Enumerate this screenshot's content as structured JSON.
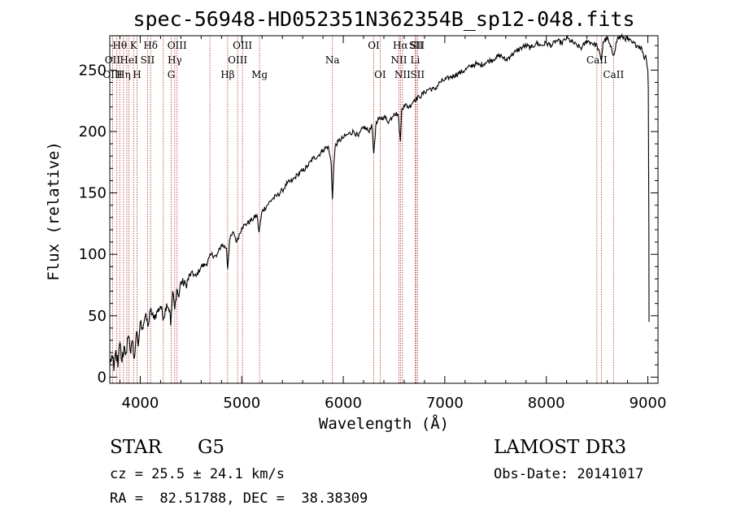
{
  "chart_data": {
    "type": "line",
    "title": "spec-56948-HD052351N362354B_sp12-048.fits",
    "xlabel": "Wavelength (Å)",
    "ylabel": "Flux (relative)",
    "xlim": [
      3700,
      9100
    ],
    "ylim": [
      -5,
      278
    ],
    "xticks": [
      4000,
      5000,
      6000,
      7000,
      8000,
      9000
    ],
    "yticks": [
      0,
      50,
      100,
      150,
      200,
      250
    ],
    "series": [
      {
        "name": "flux",
        "points": [
          [
            3700,
            10
          ],
          [
            3720,
            18
          ],
          [
            3740,
            5
          ],
          [
            3760,
            22
          ],
          [
            3780,
            8
          ],
          [
            3800,
            28
          ],
          [
            3820,
            12
          ],
          [
            3840,
            25
          ],
          [
            3860,
            20
          ],
          [
            3880,
            32
          ],
          [
            3900,
            22
          ],
          [
            3920,
            30
          ],
          [
            3940,
            15
          ],
          [
            3960,
            35
          ],
          [
            3980,
            25
          ],
          [
            4000,
            45
          ],
          [
            4020,
            40
          ],
          [
            4050,
            50
          ],
          [
            4080,
            42
          ],
          [
            4100,
            55
          ],
          [
            4130,
            48
          ],
          [
            4160,
            52
          ],
          [
            4200,
            58
          ],
          [
            4230,
            48
          ],
          [
            4260,
            60
          ],
          [
            4290,
            55
          ],
          [
            4300,
            42
          ],
          [
            4320,
            70
          ],
          [
            4340,
            55
          ],
          [
            4360,
            72
          ],
          [
            4380,
            65
          ],
          [
            4400,
            78
          ],
          [
            4450,
            75
          ],
          [
            4500,
            85
          ],
          [
            4550,
            82
          ],
          [
            4600,
            90
          ],
          [
            4650,
            92
          ],
          [
            4700,
            100
          ],
          [
            4750,
            98
          ],
          [
            4800,
            108
          ],
          [
            4850,
            105
          ],
          [
            4861,
            88
          ],
          [
            4880,
            112
          ],
          [
            4920,
            118
          ],
          [
            4950,
            110
          ],
          [
            5000,
            122
          ],
          [
            5050,
            125
          ],
          [
            5100,
            128
          ],
          [
            5150,
            132
          ],
          [
            5170,
            118
          ],
          [
            5200,
            135
          ],
          [
            5250,
            140
          ],
          [
            5300,
            145
          ],
          [
            5350,
            148
          ],
          [
            5400,
            152
          ],
          [
            5450,
            158
          ],
          [
            5500,
            160
          ],
          [
            5550,
            165
          ],
          [
            5600,
            168
          ],
          [
            5650,
            172
          ],
          [
            5700,
            178
          ],
          [
            5750,
            180
          ],
          [
            5800,
            185
          ],
          [
            5850,
            188
          ],
          [
            5880,
            175
          ],
          [
            5893,
            145
          ],
          [
            5905,
            170
          ],
          [
            5920,
            188
          ],
          [
            5950,
            192
          ],
          [
            6000,
            195
          ],
          [
            6050,
            198
          ],
          [
            6100,
            200
          ],
          [
            6150,
            196
          ],
          [
            6200,
            204
          ],
          [
            6250,
            200
          ],
          [
            6280,
            206
          ],
          [
            6300,
            182
          ],
          [
            6320,
            205
          ],
          [
            6350,
            210
          ],
          [
            6400,
            212
          ],
          [
            6450,
            208
          ],
          [
            6500,
            215
          ],
          [
            6540,
            214
          ],
          [
            6563,
            192
          ],
          [
            6575,
            218
          ],
          [
            6600,
            222
          ],
          [
            6650,
            220
          ],
          [
            6700,
            226
          ],
          [
            6750,
            228
          ],
          [
            6800,
            232
          ],
          [
            6850,
            235
          ],
          [
            6900,
            234
          ],
          [
            6950,
            240
          ],
          [
            7000,
            242
          ],
          [
            7050,
            244
          ],
          [
            7100,
            246
          ],
          [
            7150,
            248
          ],
          [
            7200,
            250
          ],
          [
            7250,
            253
          ],
          [
            7300,
            255
          ],
          [
            7350,
            254
          ],
          [
            7400,
            256
          ],
          [
            7450,
            258
          ],
          [
            7500,
            260
          ],
          [
            7550,
            262
          ],
          [
            7600,
            258
          ],
          [
            7650,
            262
          ],
          [
            7700,
            265
          ],
          [
            7750,
            268
          ],
          [
            7800,
            270
          ],
          [
            7850,
            268
          ],
          [
            7900,
            272
          ],
          [
            7950,
            270
          ],
          [
            8000,
            272
          ],
          [
            8050,
            270
          ],
          [
            8100,
            274
          ],
          [
            8150,
            272
          ],
          [
            8200,
            276
          ],
          [
            8250,
            273
          ],
          [
            8300,
            270
          ],
          [
            8350,
            268
          ],
          [
            8400,
            274
          ],
          [
            8450,
            272
          ],
          [
            8500,
            270
          ],
          [
            8542,
            258
          ],
          [
            8560,
            273
          ],
          [
            8600,
            276
          ],
          [
            8662,
            262
          ],
          [
            8700,
            276
          ],
          [
            8750,
            277
          ],
          [
            8800,
            275
          ],
          [
            8850,
            272
          ],
          [
            8900,
            270
          ],
          [
            8940,
            268
          ],
          [
            8960,
            260
          ],
          [
            8980,
            262
          ],
          [
            9000,
            250
          ],
          [
            9005,
            235
          ],
          [
            9010,
            120
          ],
          [
            9012,
            45
          ]
        ]
      }
    ],
    "lines_top": [
      {
        "label": "Hθ",
        "x": 3798
      },
      {
        "label": "K",
        "x": 3934
      },
      {
        "label": "Hδ",
        "x": 4102
      },
      {
        "label": "OIII",
        "x": 4363
      },
      {
        "label": "OIII",
        "x": 5007
      },
      {
        "label": "OI",
        "x": 6300
      },
      {
        "label": "Hα",
        "x": 6563
      },
      {
        "label": "SII",
        "x": 6717
      },
      {
        "label": "SII",
        "x": 6731
      }
    ],
    "lines_mid": [
      {
        "label": "OII",
        "x": 3727
      },
      {
        "label": "HeI",
        "x": 3889
      },
      {
        "label": "SII",
        "x": 4072
      },
      {
        "label": "Hγ",
        "x": 4340
      },
      {
        "label": "OIII",
        "x": 4959
      },
      {
        "label": "Na",
        "x": 5893
      },
      {
        "label": "NII",
        "x": 6548
      },
      {
        "label": "Li",
        "x": 6708
      },
      {
        "label": "CaII",
        "x": 8498
      }
    ],
    "lines_low": [
      {
        "label": "OIII",
        "x": 3727
      },
      {
        "label": "Hη",
        "x": 3835
      },
      {
        "label": "H",
        "x": 3968
      },
      {
        "label": "G",
        "x": 4305
      },
      {
        "label": "Hβ",
        "x": 4861
      },
      {
        "label": "Mg",
        "x": 5175
      },
      {
        "label": "OI",
        "x": 6363
      },
      {
        "label": "NII",
        "x": 6583
      },
      {
        "label": "SII",
        "x": 6731
      },
      {
        "label": "CaII",
        "x": 8662
      }
    ],
    "extra_lines": [
      3770,
      3868,
      4227,
      4686,
      8542
    ]
  },
  "info": {
    "class": "STAR",
    "subclass": "G5",
    "survey": "LAMOST DR3",
    "cz": "cz = 25.5 ± 24.1 km/s",
    "obs_date": "Obs-Date: 20141017",
    "coords": "RA =  82.51788, DEC =  38.38309"
  }
}
